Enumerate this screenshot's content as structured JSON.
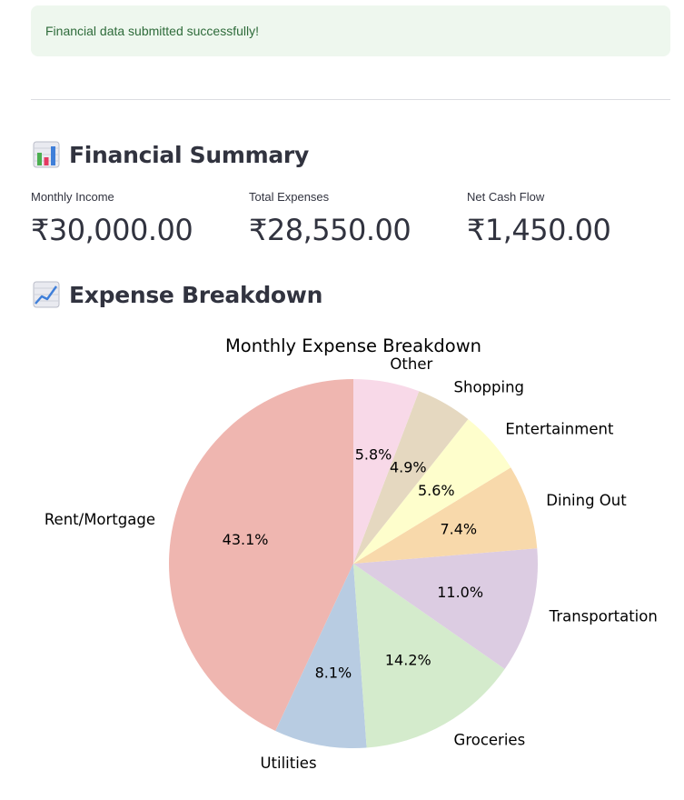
{
  "alert": {
    "message": "Financial data submitted successfully!"
  },
  "summary": {
    "title": "Financial Summary",
    "icon": "bar-chart-icon",
    "metrics": [
      {
        "label": "Monthly Income",
        "value": "₹30,000.00"
      },
      {
        "label": "Total Expenses",
        "value": "₹28,550.00"
      },
      {
        "label": "Net Cash Flow",
        "value": "₹1,450.00"
      }
    ]
  },
  "breakdown": {
    "title": "Expense Breakdown",
    "icon": "line-chart-icon"
  },
  "chart_data": {
    "type": "pie",
    "title": "Monthly Expense Breakdown",
    "start_angle_deg": 90,
    "direction": "counterclockwise",
    "slices": [
      {
        "label": "Rent/Mortgage",
        "value": 43.1,
        "pct_label": "43.1%",
        "color": "#efb6b0"
      },
      {
        "label": "Utilities",
        "value": 8.1,
        "pct_label": "8.1%",
        "color": "#b8cce2"
      },
      {
        "label": "Groceries",
        "value": 14.2,
        "pct_label": "14.2%",
        "color": "#d4ebcc"
      },
      {
        "label": "Transportation",
        "value": 11.0,
        "pct_label": "11.0%",
        "color": "#dccce2"
      },
      {
        "label": "Dining Out",
        "value": 7.4,
        "pct_label": "7.4%",
        "color": "#f8d9ab"
      },
      {
        "label": "Entertainment",
        "value": 5.6,
        "pct_label": "5.6%",
        "color": "#fefecc"
      },
      {
        "label": "Shopping",
        "value": 4.9,
        "pct_label": "4.9%",
        "color": "#e5d8c0"
      },
      {
        "label": "Other",
        "value": 5.8,
        "pct_label": "5.8%",
        "color": "#f8d9e8"
      }
    ]
  }
}
